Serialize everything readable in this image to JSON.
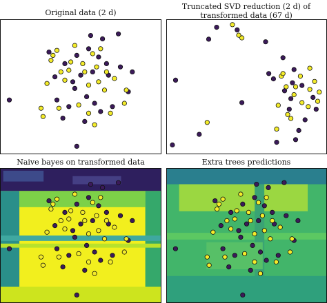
{
  "colors": {
    "class_a": "#3b1a5a",
    "class_b": "#f4ec2a",
    "nb_background": "#f2ef1e",
    "nb_dark": "#3a2a6e",
    "et_background": "#42b56a",
    "et_light": "#9bd741"
  },
  "chart_data": [
    {
      "type": "scatter",
      "title": "Original data (2 d)",
      "xlim": [
        -4,
        4
      ],
      "ylim": [
        -4,
        4
      ],
      "grid": false,
      "series": [
        {
          "class": 0,
          "points": [
            [
              -3.6,
              -0.8
            ],
            [
              -0.2,
              -3.6
            ],
            [
              0.4,
              2.3
            ],
            [
              1.9,
              3.2
            ],
            [
              2.4,
              -0.3
            ],
            [
              1.0,
              -1.5
            ],
            [
              -1.2,
              -0.8
            ],
            [
              0.6,
              0.9
            ],
            [
              -0.8,
              1.4
            ],
            [
              0.2,
              -2.1
            ],
            [
              1.4,
              0.7
            ],
            [
              -0.4,
              0.3
            ],
            [
              0.9,
              1.8
            ],
            [
              -1.6,
              2.1
            ],
            [
              2.0,
              1.2
            ],
            [
              -0.9,
              -1.9
            ],
            [
              0.3,
              -0.6
            ],
            [
              1.1,
              2.9
            ],
            [
              -1.3,
              0.6
            ],
            [
              0.7,
              -1.0
            ],
            [
              -0.2,
              1.9
            ],
            [
              1.6,
              -1.2
            ],
            [
              0.0,
              0.7
            ],
            [
              -0.6,
              -1.2
            ],
            [
              2.6,
              0.9
            ],
            [
              0.5,
              3.1
            ],
            [
              -0.3,
              -0.1
            ],
            [
              1.3,
              1.4
            ]
          ]
        },
        {
          "class": 1,
          "points": [
            [
              -1.5,
              1.6
            ],
            [
              -1.9,
              -1.8
            ],
            [
              0.1,
              1.4
            ],
            [
              0.8,
              1.2
            ],
            [
              -1.0,
              0.9
            ],
            [
              1.2,
              -0.2
            ],
            [
              -0.6,
              1.0
            ],
            [
              0.4,
              -1.6
            ],
            [
              1.7,
              0.5
            ],
            [
              -1.7,
              0.2
            ],
            [
              0.9,
              0.3
            ],
            [
              -0.3,
              2.5
            ],
            [
              1.5,
              -1.6
            ],
            [
              2.2,
              -1.0
            ],
            [
              -1.1,
              -1.3
            ],
            [
              0.6,
              2.0
            ],
            [
              -1.4,
              1.9
            ],
            [
              0.2,
              0.9
            ],
            [
              -2.0,
              -1.3
            ],
            [
              1.0,
              2.3
            ],
            [
              -0.5,
              1.5
            ],
            [
              1.3,
              0.9
            ],
            [
              -0.1,
              -1.1
            ],
            [
              0.7,
              -2.3
            ],
            [
              -0.8,
              0.4
            ],
            [
              2.3,
              -0.2
            ],
            [
              0.4,
              0.1
            ],
            [
              -1.2,
              2.2
            ]
          ]
        }
      ]
    },
    {
      "type": "scatter",
      "title": "Truncated SVD reduction (2 d) of transformed data (67 d)",
      "xlim": [
        0,
        10
      ],
      "ylim": [
        0,
        10
      ],
      "grid": false,
      "series": [
        {
          "class": 0,
          "points": [
            [
              0.3,
              0.6
            ],
            [
              2.0,
              1.4
            ],
            [
              2.6,
              8.6
            ],
            [
              3.1,
              9.5
            ],
            [
              4.4,
              9.3
            ],
            [
              4.7,
              3.8
            ],
            [
              7.8,
              4.1
            ],
            [
              6.9,
              0.8
            ],
            [
              8.1,
              1.0
            ],
            [
              8.3,
              1.7
            ],
            [
              8.0,
              6.3
            ],
            [
              9.2,
              4.2
            ],
            [
              7.7,
              3.3
            ],
            [
              0.5,
              5.5
            ],
            [
              6.2,
              8.4
            ],
            [
              7.3,
              7.2
            ],
            [
              8.5,
              5.1
            ],
            [
              9.4,
              3.3
            ],
            [
              8.7,
              2.5
            ],
            [
              6.4,
              6.0
            ],
            [
              6.7,
              5.6
            ],
            [
              7.9,
              5.3
            ],
            [
              7.4,
              4.7
            ]
          ]
        },
        {
          "class": 1,
          "points": [
            [
              4.1,
              9.7
            ],
            [
              4.7,
              8.7
            ],
            [
              2.5,
              2.3
            ],
            [
              6.9,
              1.8
            ],
            [
              7.6,
              2.9
            ],
            [
              8.9,
              3.5
            ],
            [
              9.5,
              3.9
            ],
            [
              9.6,
              4.6
            ],
            [
              8.0,
              4.4
            ],
            [
              8.4,
              5.8
            ],
            [
              7.5,
              5.0
            ],
            [
              7.2,
              5.8
            ],
            [
              9.0,
              4.8
            ],
            [
              8.5,
              3.8
            ],
            [
              9.0,
              6.4
            ],
            [
              7.8,
              2.6
            ],
            [
              9.3,
              5.4
            ],
            [
              4.5,
              8.9
            ],
            [
              8.1,
              5.0
            ],
            [
              7.3,
              6.0
            ],
            [
              7.0,
              3.6
            ]
          ]
        }
      ]
    },
    {
      "type": "heatmap",
      "title": "Naive bayes on transformed data",
      "xlim": [
        -4,
        4
      ],
      "ylim": [
        -4,
        4
      ],
      "grid": false,
      "series": [
        {
          "class": 0,
          "points": [
            [
              -3.6,
              -0.8
            ],
            [
              -0.2,
              -3.6
            ],
            [
              0.4,
              2.3
            ],
            [
              1.9,
              3.2
            ],
            [
              2.4,
              -0.3
            ],
            [
              1.0,
              -1.5
            ],
            [
              -1.2,
              -0.8
            ],
            [
              0.6,
              0.9
            ],
            [
              -0.8,
              1.4
            ],
            [
              0.2,
              -2.1
            ],
            [
              1.4,
              0.7
            ],
            [
              -0.4,
              0.3
            ],
            [
              0.9,
              1.8
            ],
            [
              -1.6,
              2.1
            ],
            [
              2.0,
              1.2
            ],
            [
              -0.9,
              -1.9
            ],
            [
              0.3,
              -0.6
            ],
            [
              1.1,
              2.9
            ],
            [
              -1.3,
              0.6
            ],
            [
              0.7,
              -1.0
            ],
            [
              -0.2,
              1.9
            ],
            [
              1.6,
              -1.2
            ],
            [
              0.0,
              0.7
            ],
            [
              -0.6,
              -1.2
            ],
            [
              2.6,
              0.9
            ],
            [
              0.5,
              3.1
            ],
            [
              -0.3,
              -0.1
            ],
            [
              1.3,
              1.4
            ]
          ]
        },
        {
          "class": 1,
          "points": [
            [
              -1.5,
              1.6
            ],
            [
              -1.9,
              -1.8
            ],
            [
              0.1,
              1.4
            ],
            [
              0.8,
              1.2
            ],
            [
              -1.0,
              0.9
            ],
            [
              1.2,
              -0.2
            ],
            [
              -0.6,
              1.0
            ],
            [
              0.4,
              -1.6
            ],
            [
              1.7,
              0.5
            ],
            [
              -1.7,
              0.2
            ],
            [
              0.9,
              0.3
            ],
            [
              -0.3,
              2.5
            ],
            [
              1.5,
              -1.6
            ],
            [
              2.2,
              -1.0
            ],
            [
              -1.1,
              -1.3
            ],
            [
              0.6,
              2.0
            ],
            [
              -1.4,
              1.9
            ],
            [
              0.2,
              0.9
            ],
            [
              -2.0,
              -1.3
            ],
            [
              1.0,
              2.3
            ],
            [
              -0.5,
              1.5
            ],
            [
              1.3,
              0.9
            ],
            [
              -0.1,
              -1.1
            ],
            [
              0.7,
              -2.3
            ],
            [
              -0.8,
              0.4
            ],
            [
              2.3,
              -0.2
            ],
            [
              0.4,
              0.1
            ],
            [
              -1.2,
              2.2
            ]
          ]
        }
      ]
    },
    {
      "type": "heatmap",
      "title": "Extra trees predictions",
      "xlim": [
        -4,
        4
      ],
      "ylim": [
        -4,
        4
      ],
      "grid": false,
      "series": [
        {
          "class": 0,
          "points": [
            [
              -3.6,
              -0.8
            ],
            [
              -0.2,
              -3.6
            ],
            [
              0.4,
              2.3
            ],
            [
              1.9,
              3.2
            ],
            [
              2.4,
              -0.3
            ],
            [
              1.0,
              -1.5
            ],
            [
              -1.2,
              -0.8
            ],
            [
              0.6,
              0.9
            ],
            [
              -0.8,
              1.4
            ],
            [
              0.2,
              -2.1
            ],
            [
              1.4,
              0.7
            ],
            [
              -0.4,
              0.3
            ],
            [
              0.9,
              1.8
            ],
            [
              -1.6,
              2.1
            ],
            [
              2.0,
              1.2
            ],
            [
              -0.9,
              -1.9
            ],
            [
              0.3,
              -0.6
            ],
            [
              1.1,
              2.9
            ],
            [
              -1.3,
              0.6
            ],
            [
              0.7,
              -1.0
            ],
            [
              -0.2,
              1.9
            ],
            [
              1.6,
              -1.2
            ],
            [
              0.0,
              0.7
            ],
            [
              -0.6,
              -1.2
            ],
            [
              2.6,
              0.9
            ],
            [
              0.5,
              3.1
            ],
            [
              -0.3,
              -0.1
            ],
            [
              1.3,
              1.4
            ]
          ]
        },
        {
          "class": 1,
          "points": [
            [
              -1.5,
              1.6
            ],
            [
              -1.9,
              -1.8
            ],
            [
              0.1,
              1.4
            ],
            [
              0.8,
              1.2
            ],
            [
              -1.0,
              0.9
            ],
            [
              1.2,
              -0.2
            ],
            [
              -0.6,
              1.0
            ],
            [
              0.4,
              -1.6
            ],
            [
              1.7,
              0.5
            ],
            [
              -1.7,
              0.2
            ],
            [
              0.9,
              0.3
            ],
            [
              -0.3,
              2.5
            ],
            [
              1.5,
              -1.6
            ],
            [
              2.2,
              -1.0
            ],
            [
              -1.1,
              -1.3
            ],
            [
              0.6,
              2.0
            ],
            [
              -1.4,
              1.9
            ],
            [
              0.2,
              0.9
            ],
            [
              -2.0,
              -1.3
            ],
            [
              1.0,
              2.3
            ],
            [
              -0.5,
              1.5
            ],
            [
              1.3,
              0.9
            ],
            [
              -0.1,
              -1.1
            ],
            [
              0.7,
              -2.3
            ],
            [
              -0.8,
              0.4
            ],
            [
              2.3,
              -0.2
            ],
            [
              0.4,
              0.1
            ],
            [
              -1.2,
              2.2
            ]
          ]
        }
      ]
    }
  ]
}
